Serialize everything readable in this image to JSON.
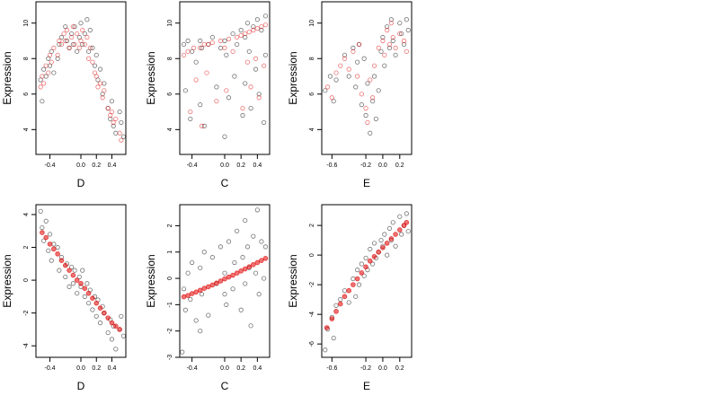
{
  "chart_data": [
    {
      "type": "scatter",
      "xlabel": "D",
      "ylabel": "Expression",
      "xlim": [
        -0.58,
        0.58
      ],
      "ylim": [
        2.6,
        11.2
      ],
      "xticks": [
        -0.4,
        0.0,
        0.2,
        0.4
      ],
      "xtick_labels": [
        "-0.4",
        "0.0",
        "0.2",
        "0.4"
      ],
      "yticks": [
        4,
        6,
        8,
        10
      ],
      "ytick_labels": [
        "4",
        "6",
        "8",
        "10"
      ],
      "grid": false,
      "series": [
        {
          "color": "#000000",
          "shape": "open-circle",
          "x": [
            -0.52,
            -0.5,
            -0.48,
            -0.45,
            -0.42,
            -0.4,
            -0.38,
            -0.35,
            -0.3,
            -0.28,
            -0.25,
            -0.2,
            -0.18,
            -0.15,
            -0.12,
            -0.1,
            -0.08,
            -0.05,
            -0.02,
            0.0,
            0.02,
            0.05,
            0.08,
            0.1,
            0.12,
            0.15,
            0.18,
            0.2,
            0.22,
            0.25,
            0.28,
            0.3,
            0.35,
            0.38,
            0.4,
            0.42,
            0.45,
            0.5,
            0.52,
            0.55
          ],
          "y": [
            6.8,
            5.6,
            7.4,
            7.0,
            8.0,
            7.6,
            8.4,
            7.2,
            8.0,
            8.8,
            9.2,
            9.8,
            9.0,
            8.6,
            9.4,
            8.8,
            9.8,
            8.4,
            9.2,
            10.0,
            8.8,
            9.4,
            10.2,
            8.4,
            9.6,
            8.6,
            7.6,
            8.2,
            6.8,
            7.4,
            6.0,
            6.6,
            5.2,
            4.6,
            5.6,
            4.2,
            3.8,
            5.0,
            4.4,
            3.6
          ]
        },
        {
          "color": "#e00000",
          "shape": "open-circle",
          "x": [
            -0.52,
            -0.5,
            -0.48,
            -0.45,
            -0.42,
            -0.4,
            -0.38,
            -0.35,
            -0.3,
            -0.28,
            -0.25,
            -0.22,
            -0.2,
            -0.18,
            -0.15,
            -0.12,
            -0.1,
            -0.08,
            -0.05,
            -0.02,
            0.0,
            0.02,
            0.05,
            0.08,
            0.1,
            0.12,
            0.15,
            0.18,
            0.2,
            0.22,
            0.25,
            0.28,
            0.3,
            0.35,
            0.38,
            0.4,
            0.42,
            0.45,
            0.5,
            0.52
          ],
          "y": [
            6.4,
            7.0,
            6.6,
            7.6,
            7.2,
            8.2,
            7.8,
            8.6,
            8.2,
            9.0,
            8.8,
            9.4,
            9.0,
            9.6,
            8.6,
            9.2,
            9.8,
            8.8,
            9.4,
            8.6,
            9.0,
            9.6,
            8.8,
            9.2,
            8.0,
            8.6,
            7.8,
            7.2,
            7.0,
            6.4,
            6.6,
            5.8,
            6.2,
            5.2,
            4.8,
            5.0,
            4.4,
            4.6,
            3.8,
            3.4
          ]
        }
      ]
    },
    {
      "type": "scatter",
      "xlabel": "C",
      "ylabel": "Expression",
      "xlim": [
        -0.55,
        0.55
      ],
      "ylim": [
        2.6,
        11.2
      ],
      "xticks": [
        -0.4,
        0.0,
        0.2,
        0.4
      ],
      "xtick_labels": [
        "-0.4",
        "0.0",
        "0.2",
        "0.4"
      ],
      "yticks": [
        4,
        6,
        8,
        10
      ],
      "ytick_labels": [
        "4",
        "6",
        "8",
        "10"
      ],
      "grid": false,
      "series": [
        {
          "color": "#000000",
          "shape": "open-circle",
          "x": [
            -0.5,
            -0.48,
            -0.45,
            -0.42,
            -0.4,
            -0.35,
            -0.3,
            -0.3,
            -0.28,
            -0.25,
            -0.2,
            -0.15,
            -0.1,
            -0.05,
            0.0,
            0.0,
            0.02,
            0.05,
            0.1,
            0.12,
            0.15,
            0.2,
            0.22,
            0.25,
            0.25,
            0.28,
            0.3,
            0.32,
            0.35,
            0.38,
            0.4,
            0.42,
            0.45,
            0.48,
            0.5,
            0.5
          ],
          "y": [
            8.8,
            6.2,
            9.0,
            4.6,
            8.4,
            7.8,
            9.0,
            5.4,
            8.6,
            4.2,
            8.8,
            9.2,
            6.4,
            8.6,
            9.0,
            3.6,
            8.2,
            5.8,
            9.4,
            7.0,
            8.8,
            9.6,
            4.8,
            9.2,
            6.6,
            10.0,
            8.4,
            5.2,
            9.8,
            7.4,
            10.2,
            6.0,
            9.6,
            4.4,
            10.4,
            8.2
          ]
        },
        {
          "color": "#e00000",
          "shape": "open-circle",
          "x": [
            -0.5,
            -0.45,
            -0.42,
            -0.38,
            -0.35,
            -0.3,
            -0.28,
            -0.25,
            -0.22,
            -0.2,
            -0.15,
            -0.1,
            -0.05,
            0.0,
            0.02,
            0.05,
            0.1,
            0.15,
            0.2,
            0.22,
            0.25,
            0.28,
            0.3,
            0.32,
            0.35,
            0.38,
            0.4,
            0.42,
            0.45,
            0.48,
            0.5
          ],
          "y": [
            8.2,
            8.4,
            5.0,
            8.6,
            6.8,
            8.6,
            4.2,
            8.8,
            7.2,
            8.8,
            8.9,
            5.6,
            9.0,
            8.6,
            6.2,
            9.1,
            8.4,
            9.2,
            9.3,
            5.2,
            9.4,
            7.8,
            9.5,
            6.4,
            9.6,
            8.0,
            9.7,
            5.8,
            9.8,
            7.6,
            9.9
          ]
        }
      ]
    },
    {
      "type": "scatter",
      "xlabel": "E",
      "ylabel": "Expression",
      "xlim": [
        -0.72,
        0.34
      ],
      "ylim": [
        2.6,
        11.2
      ],
      "xticks": [
        -0.6,
        -0.2,
        0.0,
        0.2
      ],
      "xtick_labels": [
        "-0.6",
        "-0.2",
        "0.0",
        "0.2"
      ],
      "yticks": [
        4,
        6,
        8,
        10
      ],
      "ytick_labels": [
        "4",
        "6",
        "8",
        "10"
      ],
      "grid": false,
      "series": [
        {
          "color": "#000000",
          "shape": "open-circle",
          "x": [
            -0.68,
            -0.62,
            -0.58,
            -0.55,
            -0.45,
            -0.4,
            -0.35,
            -0.32,
            -0.3,
            -0.28,
            -0.25,
            -0.22,
            -0.2,
            -0.18,
            -0.15,
            -0.12,
            -0.1,
            -0.08,
            -0.05,
            -0.02,
            0.0,
            0.02,
            0.05,
            0.08,
            0.1,
            0.12,
            0.15,
            0.2,
            0.22,
            0.25,
            0.28,
            0.3
          ],
          "y": [
            6.2,
            7.0,
            5.6,
            6.8,
            8.2,
            7.0,
            8.6,
            6.4,
            7.8,
            8.8,
            5.4,
            8.0,
            4.8,
            6.6,
            3.8,
            5.6,
            7.0,
            4.6,
            6.2,
            8.4,
            9.2,
            7.6,
            9.8,
            8.6,
            10.2,
            9.0,
            8.2,
            10.0,
            9.4,
            8.8,
            10.2,
            9.6
          ]
        },
        {
          "color": "#e00000",
          "shape": "open-circle",
          "x": [
            -0.65,
            -0.6,
            -0.55,
            -0.5,
            -0.45,
            -0.4,
            -0.35,
            -0.3,
            -0.28,
            -0.25,
            -0.2,
            -0.18,
            -0.15,
            -0.12,
            -0.1,
            -0.05,
            0.0,
            0.02,
            0.05,
            0.08,
            0.1,
            0.12,
            0.15,
            0.2,
            0.25,
            0.28
          ],
          "y": [
            6.4,
            5.8,
            7.2,
            7.6,
            8.0,
            7.4,
            8.4,
            7.0,
            8.8,
            6.0,
            5.2,
            4.4,
            6.8,
            5.8,
            7.6,
            8.6,
            9.0,
            8.2,
            9.6,
            8.8,
            10.0,
            9.2,
            8.6,
            9.4,
            9.0,
            8.4
          ]
        }
      ]
    },
    {
      "type": "scatter",
      "xlabel": "D",
      "ylabel": "Expression",
      "xlim": [
        -0.58,
        0.58
      ],
      "ylim": [
        -4.7,
        4.6
      ],
      "xticks": [
        -0.4,
        0.0,
        0.2,
        0.4
      ],
      "xtick_labels": [
        "-0.4",
        "0.0",
        "0.2",
        "0.4"
      ],
      "yticks": [
        -4,
        -2,
        0,
        2,
        4
      ],
      "ytick_labels": [
        "-4",
        "-2",
        "0",
        "2",
        "4"
      ],
      "grid": false,
      "series": [
        {
          "color": "#000000",
          "shape": "open-circle",
          "x": [
            -0.52,
            -0.5,
            -0.48,
            -0.45,
            -0.42,
            -0.4,
            -0.38,
            -0.35,
            -0.3,
            -0.28,
            -0.25,
            -0.2,
            -0.18,
            -0.15,
            -0.12,
            -0.1,
            -0.08,
            -0.05,
            -0.02,
            0.0,
            0.02,
            0.05,
            0.08,
            0.1,
            0.12,
            0.15,
            0.18,
            0.2,
            0.22,
            0.25,
            0.28,
            0.3,
            0.35,
            0.38,
            0.4,
            0.42,
            0.45,
            0.5,
            0.52,
            0.55
          ],
          "y": [
            4.2,
            3.2,
            2.4,
            3.6,
            1.8,
            2.8,
            1.2,
            2.2,
            2.0,
            0.6,
            1.4,
            0.2,
            1.0,
            -0.4,
            0.8,
            -0.2,
            0.6,
            -0.8,
            0.2,
            -0.4,
            0.6,
            -1.0,
            -0.2,
            -1.4,
            -0.6,
            -1.8,
            -1.0,
            -2.2,
            -1.2,
            -2.6,
            -1.6,
            -2.0,
            -3.2,
            -2.4,
            -3.6,
            -2.8,
            -4.2,
            -3.0,
            -2.2,
            -3.4
          ]
        },
        {
          "color": "#e00000",
          "shape": "filled-dot",
          "x": [
            -0.5,
            -0.45,
            -0.4,
            -0.35,
            -0.3,
            -0.25,
            -0.2,
            -0.15,
            -0.1,
            -0.05,
            0.0,
            0.05,
            0.1,
            0.15,
            0.2,
            0.25,
            0.3,
            0.35,
            0.4,
            0.45,
            0.5
          ],
          "y": [
            2.9,
            2.6,
            2.2,
            1.9,
            1.6,
            1.2,
            0.9,
            0.6,
            0.3,
            0.0,
            -0.2,
            -0.5,
            -0.8,
            -1.1,
            -1.4,
            -1.7,
            -2.0,
            -2.3,
            -2.6,
            -2.8,
            -3.0
          ]
        }
      ]
    },
    {
      "type": "scatter",
      "xlabel": "C",
      "ylabel": "Expression",
      "xlim": [
        -0.55,
        0.55
      ],
      "ylim": [
        -3.0,
        2.8
      ],
      "xticks": [
        -0.4,
        0.0,
        0.2,
        0.4
      ],
      "xtick_labels": [
        "-0.4",
        "0.0",
        "0.2",
        "0.4"
      ],
      "yticks": [
        -3,
        -2,
        -1,
        0,
        1,
        2
      ],
      "ytick_labels": [
        "-3",
        "-2",
        "-1",
        "0",
        "1",
        "2"
      ],
      "grid": false,
      "series": [
        {
          "color": "#000000",
          "shape": "open-circle",
          "x": [
            -0.52,
            -0.5,
            -0.48,
            -0.45,
            -0.42,
            -0.4,
            -0.35,
            -0.3,
            -0.3,
            -0.28,
            -0.25,
            -0.2,
            -0.15,
            -0.1,
            -0.05,
            0.0,
            0.0,
            0.02,
            0.05,
            0.1,
            0.12,
            0.15,
            0.2,
            0.22,
            0.25,
            0.25,
            0.28,
            0.3,
            0.32,
            0.35,
            0.38,
            0.4,
            0.42,
            0.45,
            0.48,
            0.5
          ],
          "y": [
            -2.8,
            -0.4,
            -1.2,
            0.2,
            -0.8,
            0.6,
            -1.6,
            0.4,
            -2.0,
            -0.6,
            1.0,
            -1.4,
            0.8,
            -0.2,
            1.2,
            -0.6,
            0.2,
            -1.0,
            1.4,
            -0.4,
            0.6,
            1.8,
            -1.2,
            0.8,
            2.2,
            -0.2,
            1.2,
            0.4,
            -1.8,
            1.6,
            0.2,
            2.6,
            -0.6,
            1.4,
            0.0,
            1.2
          ]
        },
        {
          "color": "#e00000",
          "shape": "filled-dot",
          "x": [
            -0.5,
            -0.45,
            -0.4,
            -0.35,
            -0.3,
            -0.25,
            -0.2,
            -0.15,
            -0.1,
            -0.05,
            0.0,
            0.05,
            0.1,
            0.15,
            0.2,
            0.25,
            0.3,
            0.35,
            0.4,
            0.45,
            0.5
          ],
          "y": [
            -0.7,
            -0.65,
            -0.58,
            -0.52,
            -0.45,
            -0.38,
            -0.32,
            -0.25,
            -0.18,
            -0.1,
            -0.02,
            0.05,
            0.12,
            0.2,
            0.28,
            0.36,
            0.44,
            0.52,
            0.6,
            0.68,
            0.76
          ]
        }
      ]
    },
    {
      "type": "scatter",
      "xlabel": "E",
      "ylabel": "Expression",
      "xlim": [
        -0.72,
        0.34
      ],
      "ylim": [
        -6.9,
        3.4
      ],
      "xticks": [
        -0.6,
        -0.2,
        0.0,
        0.2
      ],
      "xtick_labels": [
        "-0.6",
        "-0.2",
        "0.0",
        "0.2"
      ],
      "yticks": [
        -6,
        -4,
        -2,
        0,
        2
      ],
      "ytick_labels": [
        "-6",
        "-4",
        "-2",
        "0",
        "2"
      ],
      "grid": false,
      "series": [
        {
          "color": "#000000",
          "shape": "open-circle",
          "x": [
            -0.68,
            -0.65,
            -0.6,
            -0.58,
            -0.55,
            -0.5,
            -0.45,
            -0.4,
            -0.35,
            -0.32,
            -0.3,
            -0.28,
            -0.25,
            -0.22,
            -0.2,
            -0.18,
            -0.15,
            -0.12,
            -0.1,
            -0.08,
            -0.05,
            -0.02,
            0.0,
            0.02,
            0.05,
            0.08,
            0.1,
            0.12,
            0.15,
            0.2,
            0.22,
            0.25,
            0.28,
            0.3
          ],
          "y": [
            -6.4,
            -5.0,
            -4.2,
            -5.6,
            -3.4,
            -3.0,
            -2.4,
            -3.2,
            -1.6,
            -2.8,
            -1.0,
            -2.0,
            -0.6,
            -1.4,
            -0.2,
            -1.0,
            0.4,
            -0.6,
            0.8,
            -0.2,
            0.2,
            1.0,
            0.6,
            1.4,
            0.0,
            1.8,
            1.0,
            2.2,
            0.6,
            2.6,
            1.4,
            2.0,
            2.8,
            1.6
          ]
        },
        {
          "color": "#e00000",
          "shape": "filled-dot",
          "x": [
            -0.66,
            -0.6,
            -0.55,
            -0.5,
            -0.45,
            -0.4,
            -0.35,
            -0.3,
            -0.25,
            -0.2,
            -0.15,
            -0.1,
            -0.05,
            0.0,
            0.05,
            0.1,
            0.15,
            0.2,
            0.25,
            0.28
          ],
          "y": [
            -4.9,
            -4.3,
            -3.8,
            -3.3,
            -2.8,
            -2.4,
            -2.0,
            -1.6,
            -1.2,
            -0.8,
            -0.4,
            -0.1,
            0.2,
            0.5,
            0.8,
            1.1,
            1.4,
            1.7,
            2.0,
            2.2
          ]
        }
      ]
    }
  ]
}
